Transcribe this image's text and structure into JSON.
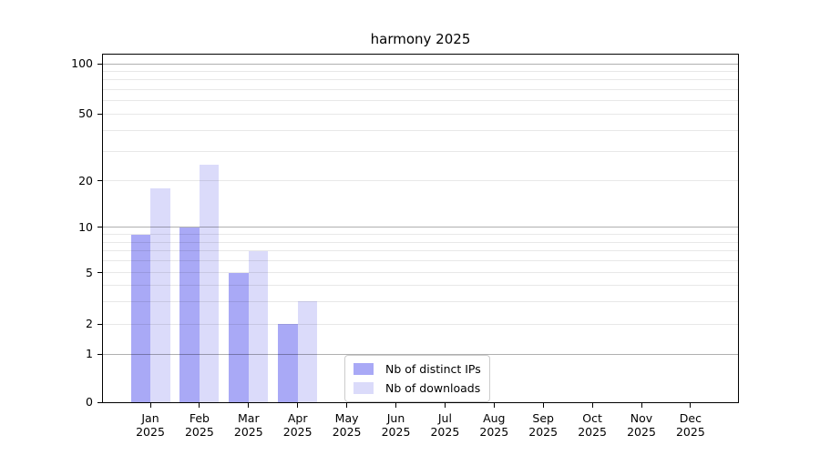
{
  "title": "harmony 2025",
  "chart_data": {
    "type": "bar",
    "title": "harmony 2025",
    "xlabel": "",
    "ylabel": "",
    "categories": [
      "Jan 2025",
      "Feb 2025",
      "Mar 2025",
      "Apr 2025",
      "May 2025",
      "Jun 2025",
      "Jul 2025",
      "Aug 2025",
      "Sep 2025",
      "Oct 2025",
      "Nov 2025",
      "Dec 2025"
    ],
    "series": [
      {
        "name": "Nb of distinct IPs",
        "color": "#a9a9f6",
        "values": [
          9,
          10,
          5,
          2,
          0,
          0,
          0,
          0,
          0,
          0,
          0,
          0
        ]
      },
      {
        "name": "Nb of downloads",
        "color": "#dbdbfa",
        "values": [
          18,
          25,
          7,
          3,
          0,
          0,
          0,
          0,
          0,
          0,
          0,
          0
        ]
      }
    ],
    "yscale": "symlog",
    "ylim": [
      0,
      113
    ],
    "yticks": [
      0,
      1,
      2,
      5,
      10,
      20,
      50,
      100
    ],
    "major_gridlines": [
      1,
      10,
      100
    ],
    "minor_gridlines": [
      2,
      3,
      4,
      5,
      6,
      7,
      8,
      9,
      20,
      30,
      40,
      50,
      60,
      70,
      80,
      90
    ],
    "grid": true,
    "legend_position": "lower center"
  }
}
